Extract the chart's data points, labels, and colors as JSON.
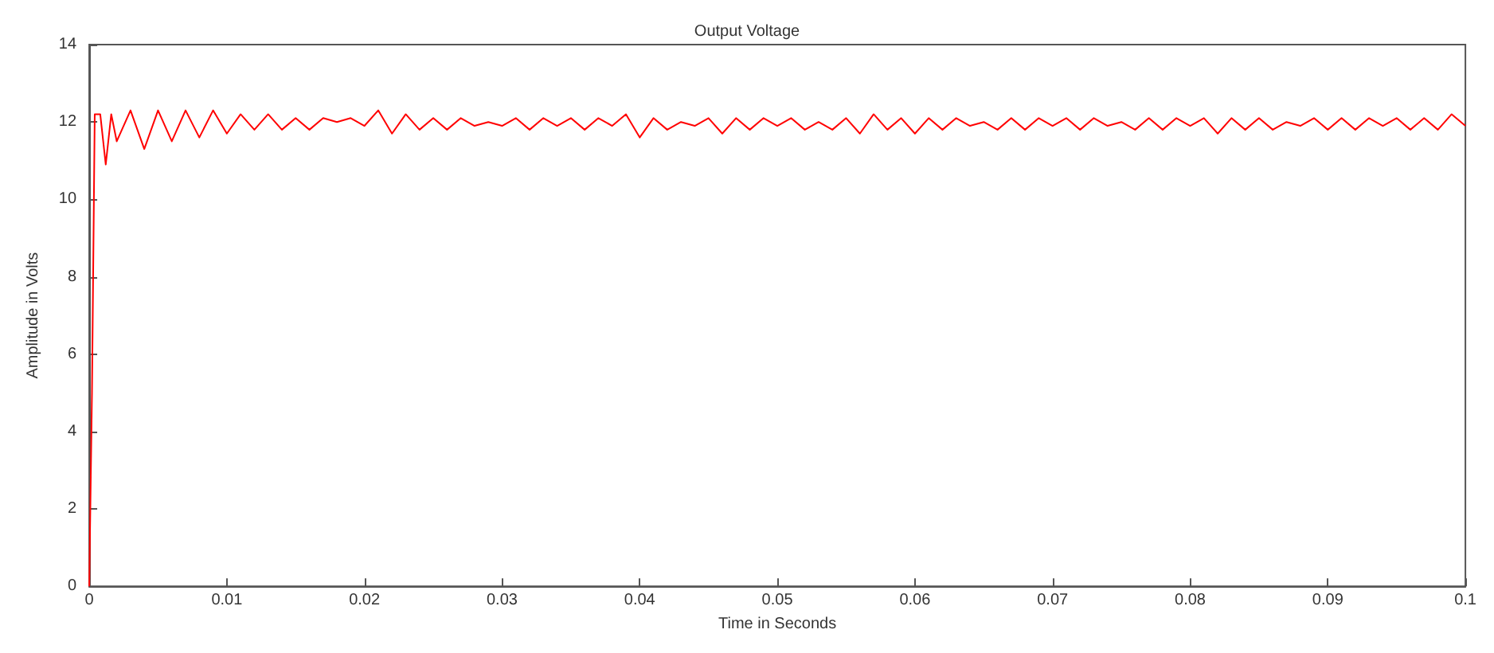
{
  "chart_data": {
    "type": "line",
    "title": "Output Voltage",
    "xlabel": "Time in Seconds",
    "ylabel": "Amplitude in Volts",
    "x": [
      0,
      0.0002,
      0.0004,
      0.0008,
      0.0012,
      0.0016,
      0.002,
      0.003,
      0.004,
      0.005,
      0.006,
      0.007,
      0.008,
      0.009,
      0.01,
      0.011,
      0.012,
      0.013,
      0.014,
      0.015,
      0.016,
      0.017,
      0.018,
      0.019,
      0.02,
      0.021,
      0.022,
      0.023,
      0.024,
      0.025,
      0.026,
      0.027,
      0.028,
      0.029,
      0.03,
      0.031,
      0.032,
      0.033,
      0.034,
      0.035,
      0.036,
      0.037,
      0.038,
      0.039,
      0.04,
      0.041,
      0.042,
      0.043,
      0.044,
      0.045,
      0.046,
      0.047,
      0.048,
      0.049,
      0.05,
      0.051,
      0.052,
      0.053,
      0.054,
      0.055,
      0.056,
      0.057,
      0.058,
      0.059,
      0.06,
      0.061,
      0.062,
      0.063,
      0.064,
      0.065,
      0.066,
      0.067,
      0.068,
      0.069,
      0.07,
      0.071,
      0.072,
      0.073,
      0.074,
      0.075,
      0.076,
      0.077,
      0.078,
      0.079,
      0.08,
      0.081,
      0.082,
      0.083,
      0.084,
      0.085,
      0.086,
      0.087,
      0.088,
      0.089,
      0.09,
      0.091,
      0.092,
      0.093,
      0.094,
      0.095,
      0.096,
      0.097,
      0.098,
      0.099,
      0.1
    ],
    "series": [
      {
        "color": "#ff0000",
        "values": [
          0,
          5,
          12.2,
          12.2,
          10.9,
          12.2,
          11.5,
          12.3,
          11.3,
          12.3,
          11.5,
          12.3,
          11.6,
          12.3,
          11.7,
          12.2,
          11.8,
          12.2,
          11.8,
          12.1,
          11.8,
          12.1,
          12.0,
          12.1,
          11.9,
          12.3,
          11.7,
          12.2,
          11.8,
          12.1,
          11.8,
          12.1,
          11.9,
          12.0,
          11.9,
          12.1,
          11.8,
          12.1,
          11.9,
          12.1,
          11.8,
          12.1,
          11.9,
          12.2,
          11.6,
          12.1,
          11.8,
          12.0,
          11.9,
          12.1,
          11.7,
          12.1,
          11.8,
          12.1,
          11.9,
          12.1,
          11.8,
          12.0,
          11.8,
          12.1,
          11.7,
          12.2,
          11.8,
          12.1,
          11.7,
          12.1,
          11.8,
          12.1,
          11.9,
          12.0,
          11.8,
          12.1,
          11.8,
          12.1,
          11.9,
          12.1,
          11.8,
          12.1,
          11.9,
          12.0,
          11.8,
          12.1,
          11.8,
          12.1,
          11.9,
          12.1,
          11.7,
          12.1,
          11.8,
          12.1,
          11.8,
          12.0,
          11.9,
          12.1,
          11.8,
          12.1,
          11.8,
          12.1,
          11.9,
          12.1,
          11.8,
          12.1,
          11.8,
          12.2,
          11.9
        ]
      }
    ],
    "xlim": [
      0,
      0.1
    ],
    "xticks": [
      0,
      0.01,
      0.02,
      0.03,
      0.04,
      0.05,
      0.06,
      0.07,
      0.08,
      0.09,
      0.1
    ],
    "ylim": [
      0,
      14
    ],
    "yticks": [
      0,
      2,
      4,
      6,
      8,
      10,
      12,
      14
    ],
    "grid": false,
    "marker": "none",
    "line_style": "solid"
  }
}
